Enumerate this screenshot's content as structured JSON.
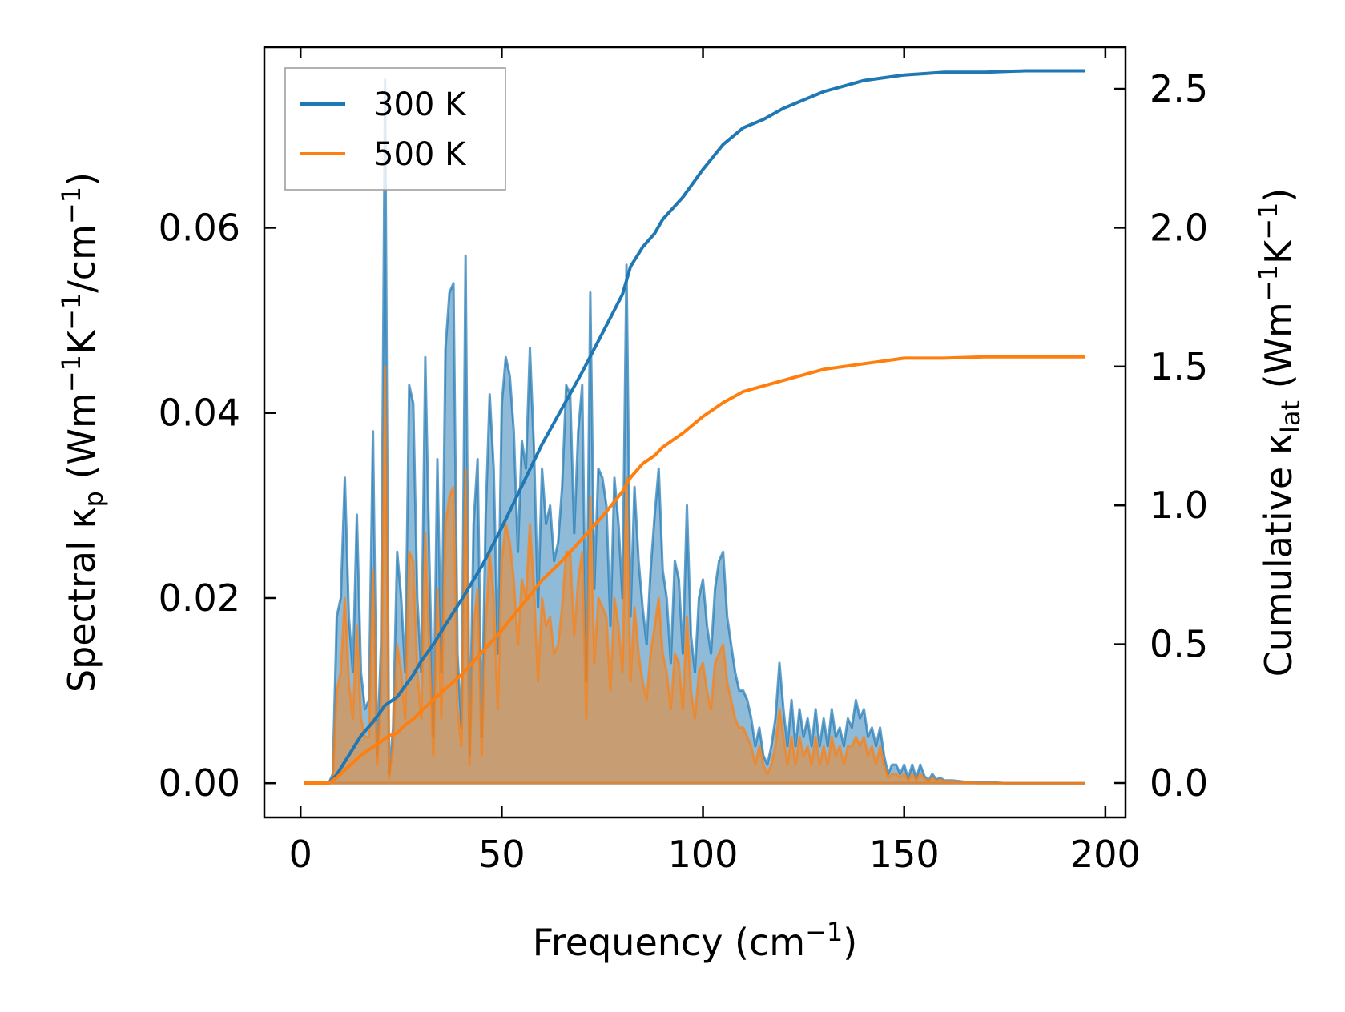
{
  "chart_data": {
    "type": "area",
    "xlabel": "Frequency (cm",
    "xlabel_sup": "−1",
    "xlabel_end": ")",
    "ylabel_left": {
      "pre": "Spectral κ",
      "sub": "p",
      "mid1": " (Wm",
      "sup1": "−1",
      "mid2": "K",
      "sup2": "−1",
      "mid3": "/cm",
      "sup3": "−1",
      "end": ")"
    },
    "ylabel_right": {
      "pre": "Cumulative κ",
      "sub": "lat",
      "mid1": " (Wm",
      "sup1": "−1",
      "mid2": "K",
      "sup2": "−1",
      "end": ")"
    },
    "xlim": [
      -9,
      205
    ],
    "ylim_left": [
      -0.0037,
      0.0795
    ],
    "ylim_right": [
      -0.124,
      2.65
    ],
    "xticks": [
      "0",
      "50",
      "100",
      "150",
      "200"
    ],
    "xtick_values": [
      0,
      50,
      100,
      150,
      200
    ],
    "yticks_left": [
      "0.00",
      "0.02",
      "0.04",
      "0.06"
    ],
    "ytick_values_left": [
      0,
      0.02,
      0.04,
      0.06
    ],
    "yticks_right": [
      "0.0",
      "0.5",
      "1.0",
      "1.5",
      "2.0",
      "2.5"
    ],
    "ytick_values_right": [
      0,
      0.5,
      1.0,
      1.5,
      2.0,
      2.5
    ],
    "legend_position": "top-left",
    "colors": {
      "300K": "#1f77b4",
      "500K": "#ff7f0e"
    },
    "series": [
      {
        "name": "300 K",
        "axis": "left",
        "kind": "spectral",
        "x": [
          1,
          7,
          8,
          9,
          10,
          11,
          12,
          13,
          14,
          15,
          16,
          17,
          18,
          19,
          20,
          21,
          22,
          23,
          24,
          25,
          26,
          27,
          28,
          29,
          30,
          31,
          32,
          33,
          34,
          35,
          36,
          37,
          38,
          39,
          40,
          41,
          42,
          43,
          44,
          45,
          46,
          47,
          48,
          49,
          50,
          51,
          52,
          53,
          54,
          55,
          56,
          57,
          58,
          59,
          60,
          61,
          62,
          63,
          64,
          65,
          66,
          67,
          68,
          69,
          70,
          71,
          72,
          73,
          74,
          75,
          76,
          77,
          78,
          79,
          80,
          81,
          82,
          83,
          84,
          85,
          86,
          87,
          88,
          89,
          90,
          91,
          92,
          93,
          94,
          95,
          96,
          97,
          98,
          99,
          100,
          101,
          102,
          103,
          104,
          105,
          106,
          107,
          108,
          109,
          110,
          111,
          112,
          113,
          114,
          115,
          116,
          117,
          118,
          119,
          120,
          121,
          122,
          123,
          124,
          125,
          126,
          127,
          128,
          129,
          130,
          131,
          132,
          133,
          134,
          135,
          136,
          137,
          138,
          139,
          140,
          141,
          142,
          143,
          144,
          145,
          146,
          147,
          148,
          149,
          150,
          151,
          152,
          153,
          154,
          155,
          156,
          157,
          158,
          159,
          160,
          162,
          164,
          166,
          168,
          170,
          172,
          175,
          180,
          195
        ],
        "values": [
          0,
          0,
          0.001,
          0.018,
          0.02,
          0.033,
          0.018,
          0.012,
          0.029,
          0.012,
          0.008,
          0.009,
          0.038,
          0.003,
          0.015,
          0.076,
          0.001,
          0.006,
          0.025,
          0.02,
          0.012,
          0.043,
          0.041,
          0.02,
          0.012,
          0.046,
          0.024,
          0.005,
          0.035,
          0.012,
          0.047,
          0.053,
          0.054,
          0.014,
          0.006,
          0.057,
          0.003,
          0.028,
          0.035,
          0.005,
          0.029,
          0.042,
          0.034,
          0.014,
          0.041,
          0.046,
          0.044,
          0.038,
          0.025,
          0.037,
          0.034,
          0.047,
          0.036,
          0.019,
          0.034,
          0.028,
          0.03,
          0.024,
          0.026,
          0.032,
          0.043,
          0.042,
          0.027,
          0.038,
          0.043,
          0.011,
          0.053,
          0.021,
          0.034,
          0.033,
          0.03,
          0.017,
          0.033,
          0.028,
          0.02,
          0.056,
          0.018,
          0.032,
          0.024,
          0.019,
          0.015,
          0.023,
          0.029,
          0.034,
          0.023,
          0.02,
          0.013,
          0.024,
          0.022,
          0.014,
          0.03,
          0.016,
          0.012,
          0.02,
          0.022,
          0.017,
          0.014,
          0.021,
          0.024,
          0.025,
          0.018,
          0.015,
          0.012,
          0.01,
          0.01,
          0.009,
          0.007,
          0.004,
          0.006,
          0.003,
          0.002,
          0.004,
          0.007,
          0.013,
          0.008,
          0.004,
          0.009,
          0.004,
          0.008,
          0.005,
          0.007,
          0.004,
          0.008,
          0.004,
          0.007,
          0.004,
          0.008,
          0.005,
          0.006,
          0.004,
          0.007,
          0.006,
          0.009,
          0.007,
          0.008,
          0.005,
          0.006,
          0.004,
          0.006,
          0.003,
          0.001,
          0.002,
          0.002,
          0.001,
          0.002,
          0.0005,
          0.002,
          0.0005,
          0.002,
          0.0008,
          0.0003,
          0.001,
          0.0004,
          0.0006,
          0.0003,
          0.0003,
          0.0002,
          0.0001,
          0.0001,
          0.0001,
          0.0001,
          0.0,
          0.0,
          0.0
        ]
      },
      {
        "name": "500 K",
        "axis": "left",
        "kind": "spectral",
        "x": [
          1,
          7,
          8,
          9,
          10,
          11,
          12,
          13,
          14,
          15,
          16,
          17,
          18,
          19,
          20,
          21,
          22,
          23,
          24,
          25,
          26,
          27,
          28,
          29,
          30,
          31,
          32,
          33,
          34,
          35,
          36,
          37,
          38,
          39,
          40,
          41,
          42,
          43,
          44,
          45,
          46,
          47,
          48,
          49,
          50,
          51,
          52,
          53,
          54,
          55,
          56,
          57,
          58,
          59,
          60,
          61,
          62,
          63,
          64,
          65,
          66,
          67,
          68,
          69,
          70,
          71,
          72,
          73,
          74,
          75,
          76,
          77,
          78,
          79,
          80,
          81,
          82,
          83,
          84,
          85,
          86,
          87,
          88,
          89,
          90,
          91,
          92,
          93,
          94,
          95,
          96,
          97,
          98,
          99,
          100,
          101,
          102,
          103,
          104,
          105,
          106,
          107,
          108,
          109,
          110,
          111,
          112,
          113,
          114,
          115,
          116,
          117,
          118,
          119,
          120,
          121,
          122,
          123,
          124,
          125,
          126,
          127,
          128,
          129,
          130,
          131,
          132,
          133,
          134,
          135,
          136,
          137,
          138,
          139,
          140,
          141,
          142,
          143,
          144,
          145,
          146,
          147,
          148,
          149,
          150,
          151,
          152,
          153,
          154,
          155,
          156,
          157,
          158,
          159,
          160,
          162,
          164,
          166,
          168,
          170,
          172,
          175,
          180,
          195
        ],
        "values": [
          0,
          0,
          0.0005,
          0.01,
          0.012,
          0.02,
          0.011,
          0.007,
          0.017,
          0.007,
          0.005,
          0.005,
          0.023,
          0.002,
          0.009,
          0.045,
          0.0005,
          0.004,
          0.015,
          0.012,
          0.007,
          0.025,
          0.024,
          0.012,
          0.007,
          0.027,
          0.014,
          0.003,
          0.021,
          0.007,
          0.028,
          0.031,
          0.032,
          0.008,
          0.004,
          0.034,
          0.002,
          0.017,
          0.021,
          0.003,
          0.017,
          0.025,
          0.02,
          0.008,
          0.024,
          0.028,
          0.026,
          0.022,
          0.015,
          0.022,
          0.02,
          0.028,
          0.021,
          0.011,
          0.02,
          0.017,
          0.018,
          0.014,
          0.015,
          0.019,
          0.025,
          0.025,
          0.016,
          0.022,
          0.025,
          0.007,
          0.031,
          0.013,
          0.02,
          0.019,
          0.018,
          0.01,
          0.02,
          0.017,
          0.012,
          0.033,
          0.011,
          0.019,
          0.014,
          0.011,
          0.009,
          0.014,
          0.017,
          0.02,
          0.014,
          0.012,
          0.008,
          0.014,
          0.013,
          0.008,
          0.018,
          0.01,
          0.007,
          0.012,
          0.013,
          0.01,
          0.008,
          0.013,
          0.014,
          0.015,
          0.011,
          0.009,
          0.007,
          0.006,
          0.006,
          0.005,
          0.004,
          0.002,
          0.004,
          0.002,
          0.001,
          0.002,
          0.004,
          0.008,
          0.005,
          0.002,
          0.005,
          0.002,
          0.005,
          0.003,
          0.004,
          0.002,
          0.005,
          0.002,
          0.004,
          0.002,
          0.005,
          0.003,
          0.004,
          0.002,
          0.004,
          0.004,
          0.005,
          0.004,
          0.005,
          0.003,
          0.004,
          0.002,
          0.004,
          0.002,
          0.0006,
          0.001,
          0.001,
          0.0006,
          0.001,
          0.0003,
          0.001,
          0.0003,
          0.001,
          0.0005,
          0.0002,
          0.0006,
          0.0002,
          0.0004,
          0.0002,
          0.0002,
          0.0001,
          0.0001,
          0.0,
          0.0,
          0.0,
          0.0,
          0.0,
          0.0
        ]
      },
      {
        "name": "300 K",
        "axis": "right",
        "kind": "cumulative",
        "x": [
          1,
          7,
          9,
          12,
          15,
          18,
          20,
          21,
          22,
          24,
          26,
          28,
          30,
          33,
          36,
          40,
          45,
          50,
          55,
          60,
          65,
          70,
          75,
          80,
          82,
          85,
          88,
          90,
          95,
          100,
          105,
          110,
          115,
          120,
          125,
          130,
          135,
          140,
          145,
          150,
          160,
          170,
          180,
          195
        ],
        "values": [
          0,
          0,
          0.03,
          0.1,
          0.17,
          0.22,
          0.26,
          0.28,
          0.29,
          0.31,
          0.35,
          0.39,
          0.44,
          0.5,
          0.57,
          0.66,
          0.78,
          0.92,
          1.07,
          1.22,
          1.35,
          1.48,
          1.62,
          1.76,
          1.86,
          1.93,
          1.98,
          2.03,
          2.11,
          2.21,
          2.3,
          2.36,
          2.39,
          2.43,
          2.46,
          2.49,
          2.51,
          2.53,
          2.54,
          2.55,
          2.56,
          2.56,
          2.565,
          2.565
        ]
      },
      {
        "name": "500 K",
        "axis": "right",
        "kind": "cumulative",
        "x": [
          1,
          7,
          9,
          12,
          15,
          18,
          20,
          21,
          22,
          24,
          26,
          28,
          30,
          33,
          36,
          40,
          45,
          50,
          55,
          60,
          65,
          70,
          75,
          80,
          82,
          85,
          88,
          90,
          95,
          100,
          105,
          110,
          115,
          120,
          125,
          130,
          135,
          140,
          145,
          150,
          160,
          170,
          180,
          195
        ],
        "values": [
          0,
          0,
          0.02,
          0.06,
          0.1,
          0.13,
          0.15,
          0.16,
          0.17,
          0.18,
          0.21,
          0.23,
          0.26,
          0.3,
          0.34,
          0.39,
          0.47,
          0.55,
          0.64,
          0.73,
          0.8,
          0.88,
          0.96,
          1.05,
          1.1,
          1.15,
          1.18,
          1.21,
          1.26,
          1.32,
          1.37,
          1.41,
          1.43,
          1.45,
          1.47,
          1.49,
          1.5,
          1.51,
          1.52,
          1.53,
          1.53,
          1.535,
          1.535,
          1.535
        ]
      }
    ],
    "legend": [
      "300 K",
      "500 K"
    ]
  }
}
